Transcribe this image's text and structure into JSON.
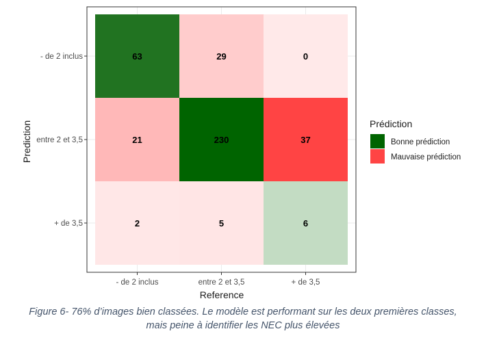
{
  "chart_data": {
    "type": "heatmap",
    "xlabel": "Reference",
    "ylabel": "Prediction",
    "x_categories": [
      "- de 2 inclus",
      "entre 2 et 3,5",
      "+ de 3,5"
    ],
    "y_categories": [
      "- de 2 inclus",
      "entre 2 et 3,5",
      "+ de 3,5"
    ],
    "cells": [
      {
        "x": "- de 2 inclus",
        "y": "- de 2 inclus",
        "value": 63,
        "label": "63",
        "category": "Bonne prédiction",
        "color": "#217321"
      },
      {
        "x": "entre 2 et 3,5",
        "y": "- de 2 inclus",
        "value": 29,
        "label": "29",
        "category": "Mauvaise prédiction",
        "color": "#ffcccc"
      },
      {
        "x": "+ de 3,5",
        "y": "- de 2 inclus",
        "value": 0,
        "label": "0",
        "category": "Mauvaise prédiction",
        "color": "#ffe9e9"
      },
      {
        "x": "- de 2 inclus",
        "y": "entre 2 et 3,5",
        "value": 21,
        "label": "21",
        "category": "Mauvaise prédiction",
        "color": "#ffb8b8"
      },
      {
        "x": "entre 2 et 3,5",
        "y": "entre 2 et 3,5",
        "value": 230,
        "label": "230",
        "category": "Bonne prédiction",
        "color": "#006400"
      },
      {
        "x": "+ de 3,5",
        "y": "entre 2 et 3,5",
        "value": 37,
        "label": "37",
        "category": "Mauvaise prédiction",
        "color": "#ff4444"
      },
      {
        "x": "- de 2 inclus",
        "y": "+ de 3,5",
        "value": 2,
        "label": "2",
        "category": "Mauvaise prédiction",
        "color": "#ffe7e7"
      },
      {
        "x": "entre 2 et 3,5",
        "y": "+ de 3,5",
        "value": 5,
        "label": "5",
        "category": "Mauvaise prédiction",
        "color": "#ffe5e5"
      },
      {
        "x": "+ de 3,5",
        "y": "+ de 3,5",
        "value": 6,
        "label": "6",
        "category": "Bonne prédiction",
        "color": "#c3dcc3"
      }
    ],
    "legend": {
      "title": "Prédiction",
      "placement": "right",
      "entries": [
        {
          "label": "Bonne prédiction",
          "color": "#006400"
        },
        {
          "label": "Mauvaise prédiction",
          "color": "#ff4444"
        }
      ]
    },
    "grid": true,
    "panel_border": true
  },
  "caption": {
    "line1": "Figure 6- 76% d’images bien classées. Le modèle est performant sur les deux premières classes,",
    "line2": "mais peine à identifier les NEC plus élevées"
  }
}
